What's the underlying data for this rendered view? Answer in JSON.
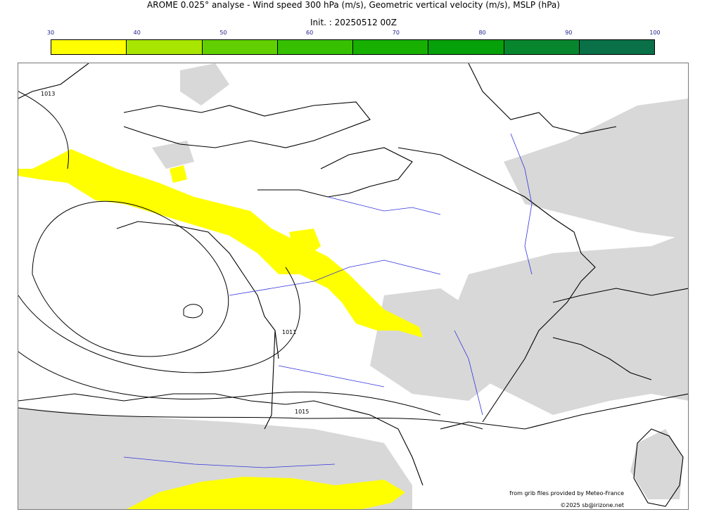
{
  "title": "AROME 0.025° analyse - Wind speed 300 hPa (m/s), Geometric vertical velocity (m/s), MSLP (hPa)",
  "init": "Init. : 20250512 00Z",
  "colorbar": {
    "ticks": [
      "30",
      "40",
      "50",
      "60",
      "70",
      "80",
      "90",
      "100"
    ],
    "colors": [
      "#ffff00",
      "#a8e600",
      "#62d000",
      "#36c000",
      "#17b000",
      "#06a00a",
      "#08862e",
      "#0a7048"
    ]
  },
  "map": {
    "isobar_labels": [
      "1013",
      "1011",
      "1015"
    ],
    "colors": {
      "wind_jet": "#ffff00",
      "vertical_velocity": "#d8d8d8",
      "coast": "#000000",
      "rivers": "#3333dd",
      "isobars": "#000000"
    }
  },
  "credits": {
    "source": "from grib files provided by Meteo-France",
    "copyright": "©2025 sb@irizone.net"
  }
}
